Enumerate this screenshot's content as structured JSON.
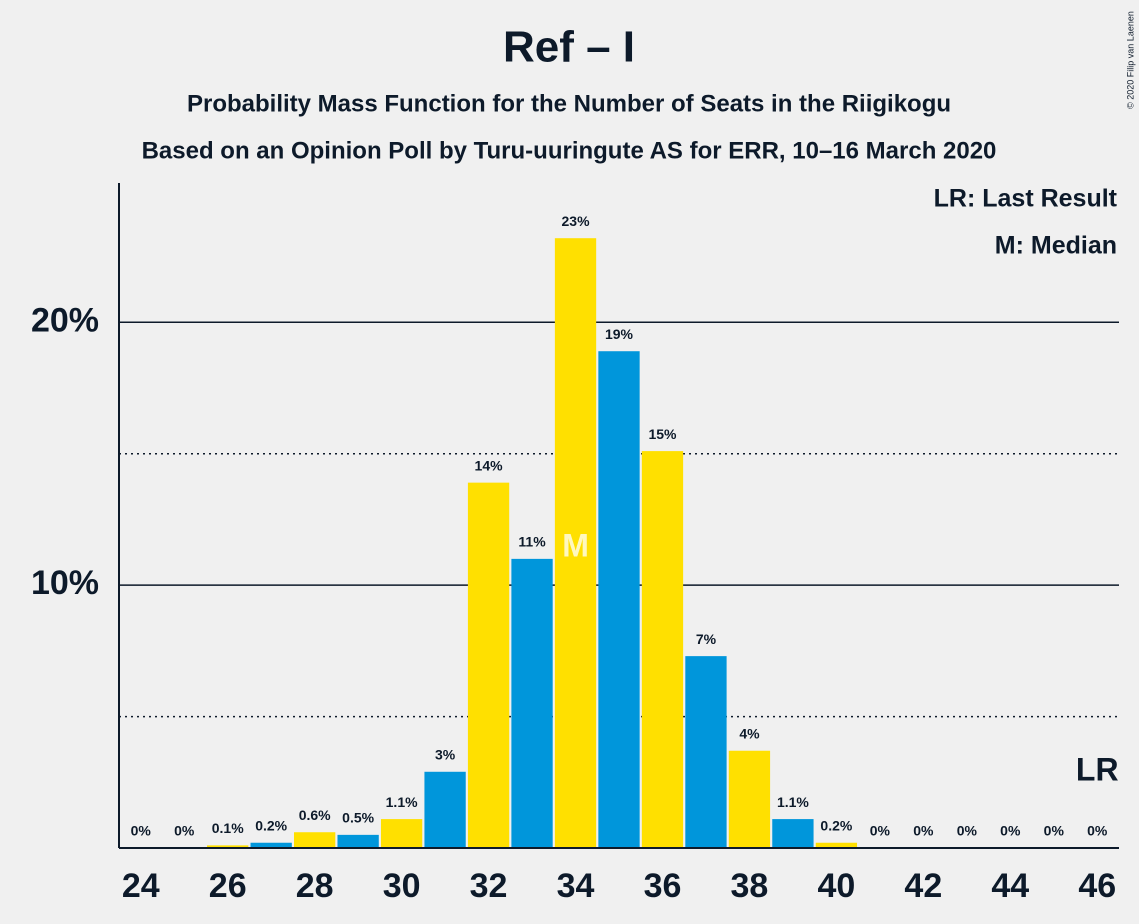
{
  "chart_data": {
    "type": "bar",
    "title": "Ref – I",
    "subtitle": "Probability Mass Function for the Number of Seats in the Riigikogu",
    "subtitle2": "Based on an Opinion Poll by Turu-uuringute AS for ERR, 10–16 March 2020",
    "copyright": "© 2020 Filip van Laenen",
    "legend": [
      "LR: Last Result",
      "M: Median"
    ],
    "x": [
      24,
      25,
      26,
      27,
      28,
      29,
      30,
      31,
      32,
      33,
      34,
      35,
      36,
      37,
      38,
      39,
      40,
      41,
      42,
      43,
      44,
      45,
      46
    ],
    "values": [
      0,
      0,
      0.1,
      0.2,
      0.6,
      0.5,
      1.1,
      2.9,
      13.9,
      11.0,
      23.2,
      18.9,
      15.1,
      7.3,
      3.7,
      1.1,
      0.2,
      0,
      0,
      0,
      0,
      0,
      0
    ],
    "value_labels": [
      "0%",
      "0%",
      "0.1%",
      "0.2%",
      "0.6%",
      "0.5%",
      "1.1%",
      "3%",
      "14%",
      "11%",
      "23%",
      "19%",
      "15%",
      "7%",
      "4%",
      "1.1%",
      "0.2%",
      "0%",
      "0%",
      "0%",
      "0%",
      "0%",
      "0%"
    ],
    "colors": [
      "#FFE000",
      "#0096DB"
    ],
    "xlim": [
      23.5,
      46.5
    ],
    "xticks": [
      24,
      26,
      28,
      30,
      32,
      34,
      36,
      38,
      40,
      42,
      44,
      46
    ],
    "ylim": [
      0,
      25.3
    ],
    "yticks": [
      {
        "value": 10,
        "label": "10%"
      },
      {
        "value": 20,
        "label": "20%"
      }
    ],
    "minor_yticks": [
      5,
      15
    ],
    "median": 34,
    "median_label": "M",
    "last_result": 46,
    "last_result_label": "LR"
  }
}
